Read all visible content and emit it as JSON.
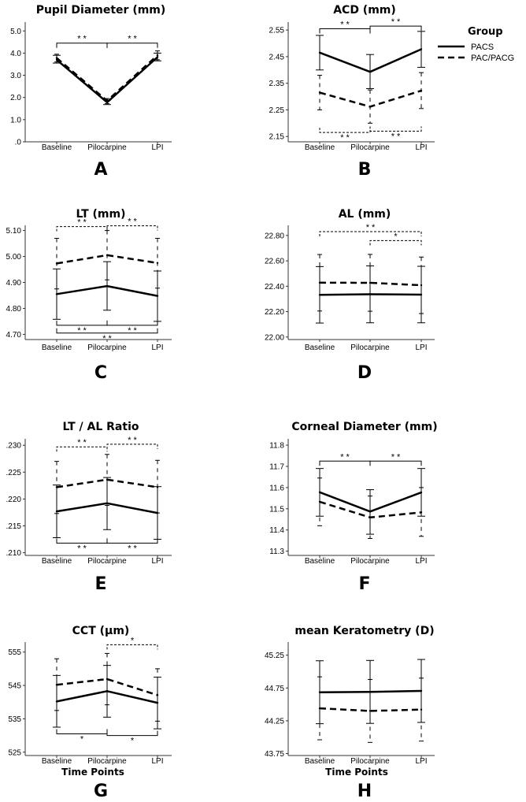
{
  "legend": {
    "title": "Group",
    "entries": [
      {
        "name": "PACS",
        "style": "solid"
      },
      {
        "name": "PAC/PACG",
        "style": "dashed"
      }
    ]
  },
  "chart_data": [
    {
      "panel": "A",
      "type": "line",
      "title": "Pupil Diameter (mm)",
      "xlabel": "",
      "categories": [
        "Baseline",
        "Pilocarpine",
        "LPI"
      ],
      "ylim": [
        0,
        5.4
      ],
      "yticks": [
        0,
        1,
        2,
        3,
        4,
        5
      ],
      "ytick_labels": [
        ".0",
        "1.0",
        "2.0",
        "3.0",
        "4.0",
        "5.0"
      ],
      "series": [
        {
          "name": "PACS",
          "values": [
            3.7,
            1.78,
            3.82
          ],
          "err_low": [
            3.55,
            1.68,
            3.65
          ],
          "err_high": [
            3.9,
            1.88,
            4.0
          ]
        },
        {
          "name": "PAC/PACG",
          "values": [
            3.78,
            1.85,
            3.9
          ],
          "err_low": [
            3.6,
            1.72,
            3.7
          ],
          "err_high": [
            3.95,
            1.95,
            4.1
          ]
        }
      ],
      "significance": [
        {
          "from": 0,
          "to": 1,
          "y": 4.45,
          "label": "* *",
          "style": "solid",
          "dir": "down"
        },
        {
          "from": 1,
          "to": 2,
          "y": 4.45,
          "label": "* *",
          "style": "solid",
          "dir": "down"
        }
      ]
    },
    {
      "panel": "B",
      "type": "line",
      "title": "ACD (mm)",
      "xlabel": "",
      "categories": [
        "Baseline",
        "Pilocarpine",
        "LPI"
      ],
      "ylim": [
        2.13,
        2.58
      ],
      "yticks": [
        2.15,
        2.25,
        2.35,
        2.45,
        2.55
      ],
      "ytick_labels": [
        "2.15",
        "2.25",
        "2.35",
        "2.45",
        "2.55"
      ],
      "series": [
        {
          "name": "PACS",
          "values": [
            2.465,
            2.393,
            2.478
          ],
          "err_low": [
            2.4,
            2.33,
            2.41
          ],
          "err_high": [
            2.53,
            2.458,
            2.545
          ]
        },
        {
          "name": "PAC/PACG",
          "values": [
            2.315,
            2.262,
            2.322
          ],
          "err_low": [
            2.25,
            2.2,
            2.255
          ],
          "err_high": [
            2.38,
            2.325,
            2.39
          ]
        }
      ],
      "significance": [
        {
          "from": 0,
          "to": 1,
          "y": 2.555,
          "label": "* *",
          "style": "solid",
          "dir": "down"
        },
        {
          "from": 1,
          "to": 2,
          "y": 2.565,
          "label": "* *",
          "style": "solid",
          "dir": "down"
        },
        {
          "from": 0,
          "to": 1,
          "y": 2.165,
          "label": "* *",
          "style": "dashed",
          "dir": "up"
        },
        {
          "from": 1,
          "to": 2,
          "y": 2.17,
          "label": "* *",
          "style": "dashed",
          "dir": "up"
        }
      ]
    },
    {
      "panel": "C",
      "type": "line",
      "title": "LT (mm)",
      "xlabel": "",
      "categories": [
        "Baseline",
        "Pilocarpine",
        "LPI"
      ],
      "ylim": [
        4.68,
        5.12
      ],
      "yticks": [
        4.7,
        4.8,
        4.9,
        5.0,
        5.1
      ],
      "ytick_labels": [
        "4.70",
        "4.80",
        "4.90",
        "5.00",
        "5.10"
      ],
      "series": [
        {
          "name": "PACS",
          "values": [
            4.855,
            4.886,
            4.848
          ],
          "err_low": [
            4.758,
            4.793,
            4.75
          ],
          "err_high": [
            4.952,
            4.98,
            4.944
          ]
        },
        {
          "name": "PAC/PACG",
          "values": [
            4.973,
            5.005,
            4.975
          ],
          "err_low": [
            4.875,
            4.91,
            4.878
          ],
          "err_high": [
            5.07,
            5.1,
            5.07
          ]
        }
      ],
      "significance": [
        {
          "from": 0,
          "to": 1,
          "y": 5.115,
          "label": "* *",
          "style": "dashed",
          "dir": "down"
        },
        {
          "from": 1,
          "to": 2,
          "y": 5.118,
          "label": "* *",
          "style": "dashed",
          "dir": "down"
        },
        {
          "from": 0,
          "to": 1,
          "y": 4.735,
          "label": "* *",
          "style": "solid",
          "dir": "up"
        },
        {
          "from": 1,
          "to": 2,
          "y": 4.735,
          "label": "* *",
          "style": "solid",
          "dir": "up"
        },
        {
          "from": 0,
          "to": 2,
          "y": 4.705,
          "label": "* *",
          "style": "solid",
          "dir": "up"
        }
      ]
    },
    {
      "panel": "D",
      "type": "line",
      "title": "AL (mm)",
      "xlabel": "",
      "categories": [
        "Baseline",
        "Pilocarpine",
        "LPI"
      ],
      "ylim": [
        21.98,
        22.88
      ],
      "yticks": [
        22.0,
        22.2,
        22.4,
        22.6,
        22.8
      ],
      "ytick_labels": [
        "22.00",
        "22.20",
        "22.40",
        "22.60",
        "22.80"
      ],
      "series": [
        {
          "name": "PACS",
          "values": [
            22.332,
            22.337,
            22.334
          ],
          "err_low": [
            22.11,
            22.112,
            22.112
          ],
          "err_high": [
            22.555,
            22.56,
            22.557
          ]
        },
        {
          "name": "PAC/PACG",
          "values": [
            22.428,
            22.427,
            22.408
          ],
          "err_low": [
            22.205,
            22.203,
            22.185
          ],
          "err_high": [
            22.65,
            22.651,
            22.63
          ]
        }
      ],
      "significance": [
        {
          "from": 0,
          "to": 2,
          "y": 22.83,
          "label": "* *",
          "style": "dashed",
          "dir": "down"
        },
        {
          "from": 1,
          "to": 2,
          "y": 22.76,
          "label": "*",
          "style": "dashed",
          "dir": "down"
        }
      ]
    },
    {
      "panel": "E",
      "type": "line",
      "title": "LT / AL Ratio",
      "xlabel": "",
      "categories": [
        "Baseline",
        "Pilocarpine",
        "LPI"
      ],
      "ylim": [
        0.2095,
        0.2312
      ],
      "yticks": [
        0.21,
        0.215,
        0.22,
        0.225,
        0.23
      ],
      "ytick_labels": [
        ".210",
        ".215",
        ".220",
        ".225",
        ".230"
      ],
      "series": [
        {
          "name": "PACS",
          "values": [
            0.2177,
            0.2192,
            0.2174
          ],
          "err_low": [
            0.2128,
            0.2143,
            0.2125
          ],
          "err_high": [
            0.2226,
            0.224,
            0.2223
          ]
        },
        {
          "name": "PAC/PACG",
          "values": [
            0.2222,
            0.2236,
            0.2222
          ],
          "err_low": [
            0.2173,
            0.2188,
            0.2174
          ],
          "err_high": [
            0.227,
            0.2283,
            0.2272
          ]
        }
      ],
      "significance": [
        {
          "from": 0,
          "to": 1,
          "y": 0.2297,
          "label": "* *",
          "style": "dashed",
          "dir": "down"
        },
        {
          "from": 1,
          "to": 2,
          "y": 0.2302,
          "label": "* *",
          "style": "dashed",
          "dir": "down"
        },
        {
          "from": 0,
          "to": 1,
          "y": 0.2118,
          "label": "* *",
          "style": "solid",
          "dir": "up"
        },
        {
          "from": 1,
          "to": 2,
          "y": 0.2118,
          "label": "* *",
          "style": "solid",
          "dir": "up"
        }
      ]
    },
    {
      "panel": "F",
      "type": "line",
      "title": "Corneal Diameter (mm)",
      "xlabel": "",
      "categories": [
        "Baseline",
        "Pilocarpine",
        "LPI"
      ],
      "ylim": [
        11.28,
        11.83
      ],
      "yticks": [
        11.3,
        11.4,
        11.5,
        11.6,
        11.7,
        11.8
      ],
      "ytick_labels": [
        "11.3",
        "11.4",
        "11.5",
        "11.6",
        "11.7",
        "11.8"
      ],
      "series": [
        {
          "name": "PACS",
          "values": [
            11.578,
            11.487,
            11.577
          ],
          "err_low": [
            11.465,
            11.38,
            11.465
          ],
          "err_high": [
            11.69,
            11.59,
            11.69
          ]
        },
        {
          "name": "PAC/PACG",
          "values": [
            11.533,
            11.459,
            11.483
          ],
          "err_low": [
            11.42,
            11.36,
            11.37
          ],
          "err_high": [
            11.645,
            11.56,
            11.6
          ]
        }
      ],
      "significance": [
        {
          "from": 0,
          "to": 1,
          "y": 11.725,
          "label": "* *",
          "style": "solid",
          "dir": "down"
        },
        {
          "from": 1,
          "to": 2,
          "y": 11.725,
          "label": "* *",
          "style": "solid",
          "dir": "down"
        }
      ]
    },
    {
      "panel": "G",
      "type": "line",
      "title": "CCT (μm)",
      "xlabel": "Time Points",
      "categories": [
        "Baseline",
        "Pilocarpine",
        "LPI"
      ],
      "ylim": [
        524,
        558
      ],
      "yticks": [
        525,
        535,
        545,
        555
      ],
      "ytick_labels": [
        "525",
        "535",
        "545",
        "555"
      ],
      "series": [
        {
          "name": "PACS",
          "values": [
            540.2,
            543.3,
            539.8
          ],
          "err_low": [
            532.5,
            535.5,
            532.0
          ],
          "err_high": [
            548.0,
            551.0,
            547.5
          ]
        },
        {
          "name": "PAC/PACG",
          "values": [
            545.2,
            546.9,
            542.1
          ],
          "err_low": [
            537.5,
            539.2,
            534.3
          ],
          "err_high": [
            553.0,
            554.6,
            550.0
          ]
        }
      ],
      "significance": [
        {
          "from": 1,
          "to": 2,
          "y": 557.2,
          "label": "*",
          "style": "dashed",
          "dir": "down"
        },
        {
          "from": 0,
          "to": 1,
          "y": 530.5,
          "label": "*",
          "style": "solid",
          "dir": "up"
        },
        {
          "from": 1,
          "to": 2,
          "y": 530.0,
          "label": "*",
          "style": "solid",
          "dir": "up"
        }
      ]
    },
    {
      "panel": "H",
      "type": "line",
      "title": "mean Keratometry (D)",
      "xlabel": "Time Points",
      "categories": [
        "Baseline",
        "Pilocarpine",
        "LPI"
      ],
      "ylim": [
        43.72,
        45.45
      ],
      "yticks": [
        43.75,
        44.25,
        44.75,
        45.25
      ],
      "ytick_labels": [
        "43.75",
        "44.25",
        "44.75",
        "45.25"
      ],
      "series": [
        {
          "name": "PACS",
          "values": [
            44.685,
            44.69,
            44.705
          ],
          "err_low": [
            44.205,
            44.21,
            44.225
          ],
          "err_high": [
            45.165,
            45.17,
            45.185
          ]
        },
        {
          "name": "PAC/PACG",
          "values": [
            44.44,
            44.4,
            44.42
          ],
          "err_low": [
            43.96,
            43.92,
            43.94
          ],
          "err_high": [
            44.92,
            44.88,
            44.9
          ]
        }
      ],
      "significance": []
    }
  ]
}
